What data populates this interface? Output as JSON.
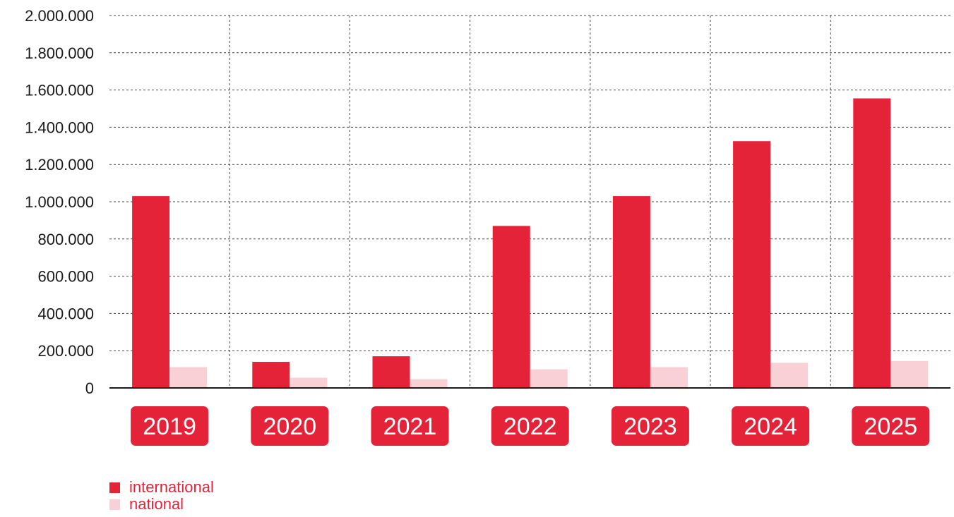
{
  "colors": {
    "international": "#e52338",
    "national": "#f9d0d6",
    "tick_badge": "#e52338",
    "grid": "#444444",
    "axis": "#1a1a1a",
    "text": "#1a1a1a"
  },
  "chart_data": {
    "type": "bar",
    "title": "",
    "xlabel": "",
    "ylabel": "",
    "categories": [
      "2019",
      "2020",
      "2021",
      "2022",
      "2023",
      "2024",
      "2025"
    ],
    "series": [
      {
        "name": "international",
        "values": [
          1030000,
          140000,
          170000,
          870000,
          1030000,
          1325000,
          1555000
        ]
      },
      {
        "name": "national",
        "values": [
          112000,
          55000,
          47000,
          100000,
          112000,
          135000,
          145000
        ]
      }
    ],
    "ylim": [
      0,
      2000000
    ],
    "yticks": [
      0,
      200000,
      400000,
      600000,
      800000,
      1000000,
      1200000,
      1400000,
      1600000,
      1800000,
      2000000
    ],
    "ytick_labels": [
      "0",
      "200.000",
      "400.000",
      "600.000",
      "800.000",
      "1.000.000",
      "1.200.000",
      "1.400.000",
      "1.600.000",
      "1.800.000",
      "2.000.000"
    ],
    "grid": true,
    "grid_style": "dashed",
    "legend_position": "bottom-left"
  },
  "legend": {
    "items": [
      {
        "label": "international"
      },
      {
        "label": "national"
      }
    ]
  }
}
